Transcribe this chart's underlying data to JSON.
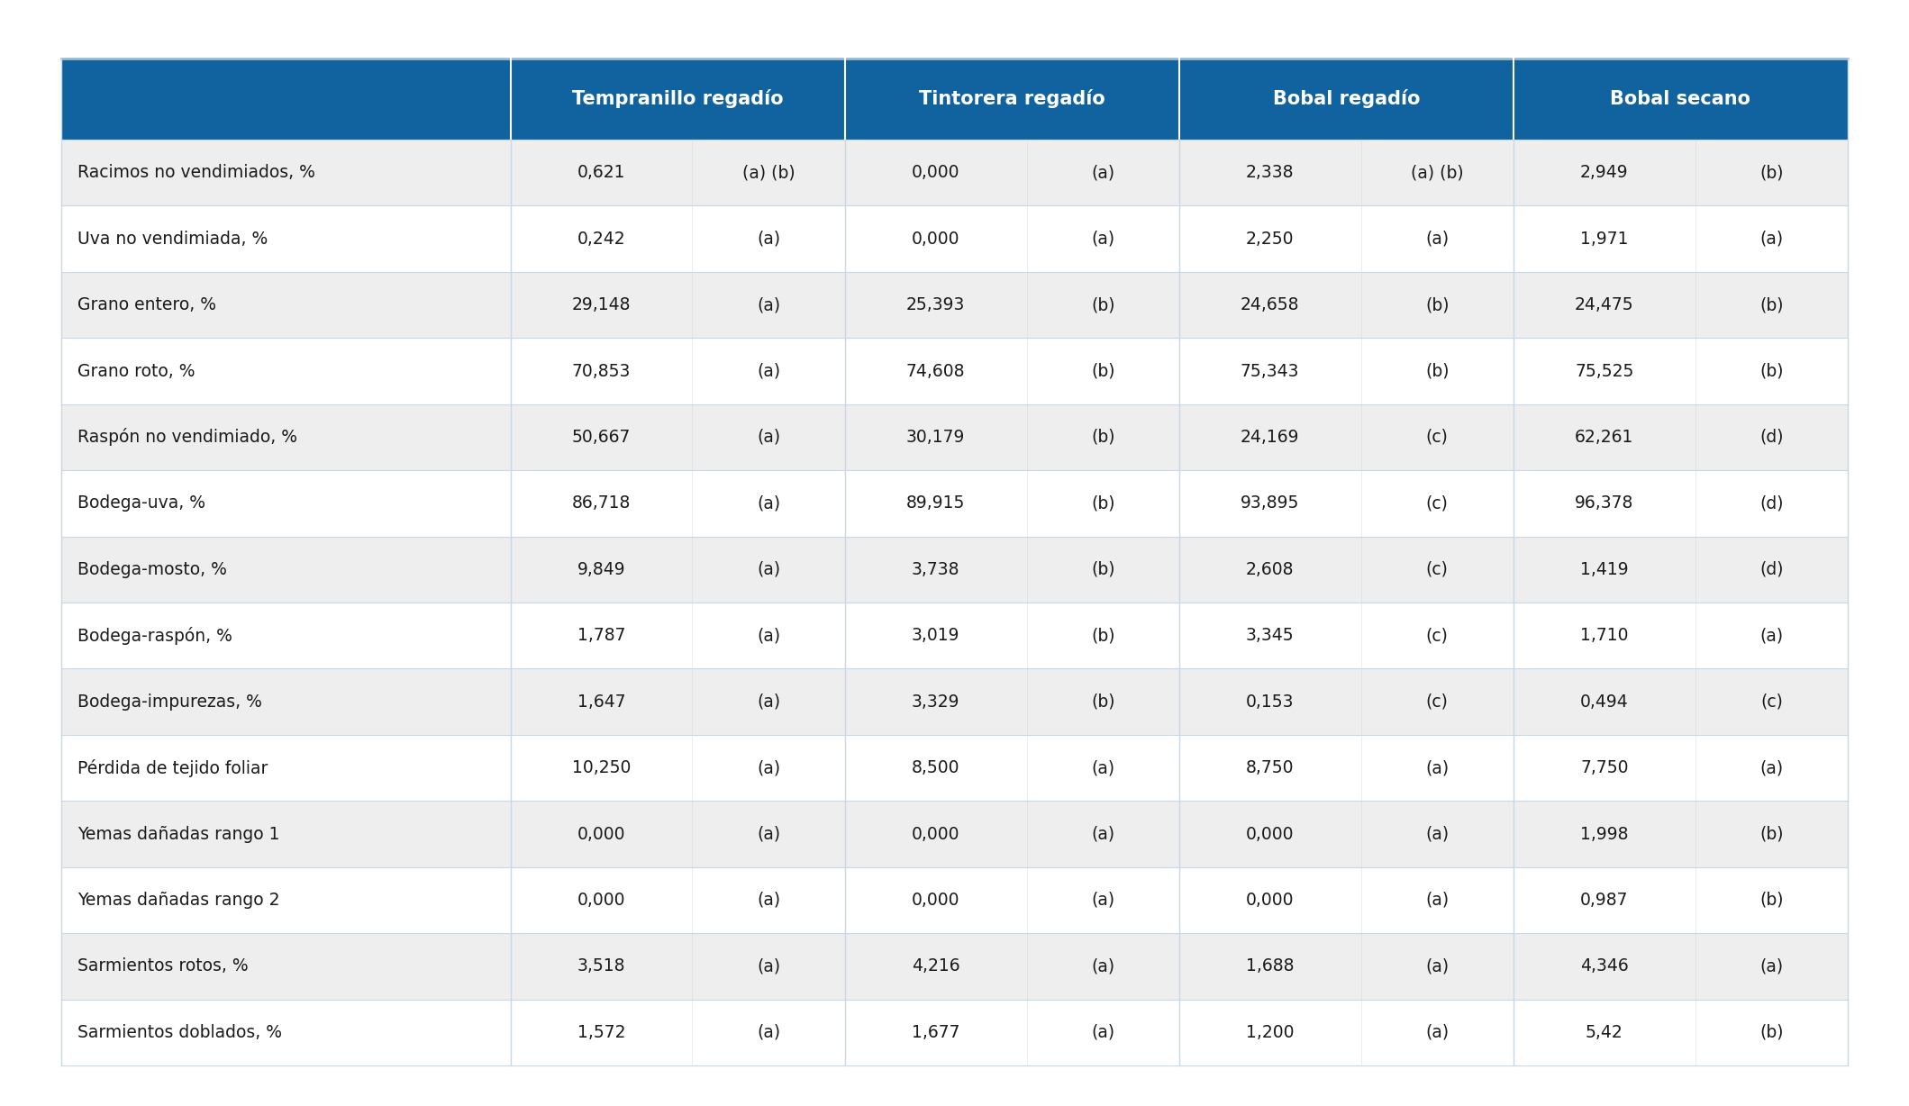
{
  "header_bg": "#1163a0",
  "header_text_color": "#ffffff",
  "row_bg_odd": "#eeeeee",
  "row_bg_even": "#ffffff",
  "border_color": "#c8d8e8",
  "text_color": "#1a1a1a",
  "fig_bg": "#ffffff",
  "col_headers": [
    "Tempranillo regadío",
    "Tintorera regadío",
    "Bobal regadío",
    "Bobal secano"
  ],
  "rows": [
    [
      "Racimos no vendimiados, %",
      "0,621",
      "(a) (b)",
      "0,000",
      "(a)",
      "2,338",
      "(a) (b)",
      "2,949",
      "(b)"
    ],
    [
      "Uva no vendimiada, %",
      "0,242",
      "(a)",
      "0,000",
      "(a)",
      "2,250",
      "(a)",
      "1,971",
      "(a)"
    ],
    [
      "Grano entero, %",
      "29,148",
      "(a)",
      "25,393",
      "(b)",
      "24,658",
      "(b)",
      "24,475",
      "(b)"
    ],
    [
      "Grano roto, %",
      "70,853",
      "(a)",
      "74,608",
      "(b)",
      "75,343",
      "(b)",
      "75,525",
      "(b)"
    ],
    [
      "Raspón no vendimiado, %",
      "50,667",
      "(a)",
      "30,179",
      "(b)",
      "24,169",
      "(c)",
      "62,261",
      "(d)"
    ],
    [
      "Bodega-uva, %",
      "86,718",
      "(a)",
      "89,915",
      "(b)",
      "93,895",
      "(c)",
      "96,378",
      "(d)"
    ],
    [
      "Bodega-mosto, %",
      "9,849",
      "(a)",
      "3,738",
      "(b)",
      "2,608",
      "(c)",
      "1,419",
      "(d)"
    ],
    [
      "Bodega-raspón, %",
      "1,787",
      "(a)",
      "3,019",
      "(b)",
      "3,345",
      "(c)",
      "1,710",
      "(a)"
    ],
    [
      "Bodega-impurezas, %",
      "1,647",
      "(a)",
      "3,329",
      "(b)",
      "0,153",
      "(c)",
      "0,494",
      "(c)"
    ],
    [
      "Pérdida de tejido foliar",
      "10,250",
      "(a)",
      "8,500",
      "(a)",
      "8,750",
      "(a)",
      "7,750",
      "(a)"
    ],
    [
      "Yemas dañadas rango 1",
      "0,000",
      "(a)",
      "0,000",
      "(a)",
      "0,000",
      "(a)",
      "1,998",
      "(b)"
    ],
    [
      "Yemas dañadas rango 2",
      "0,000",
      "(a)",
      "0,000",
      "(a)",
      "0,000",
      "(a)",
      "0,987",
      "(b)"
    ],
    [
      "Sarmientos rotos, %",
      "3,518",
      "(a)",
      "4,216",
      "(a)",
      "1,688",
      "(a)",
      "4,346",
      "(a)"
    ],
    [
      "Sarmientos doblados, %",
      "1,572",
      "(a)",
      "1,677",
      "(a)",
      "1,200",
      "(a)",
      "5,42",
      "(b)"
    ]
  ],
  "header_fontsize": 15,
  "cell_fontsize": 13.5,
  "label_fontsize": 13.5
}
